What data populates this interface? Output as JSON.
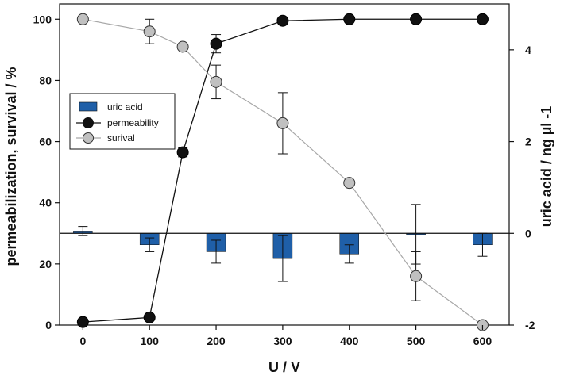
{
  "chart_data": {
    "type": "bar+line",
    "title": "",
    "xlabel": "U / V",
    "ylabel_left": "permeabilization, survival / %",
    "ylabel_right": "uric acid / ng µl -1",
    "xlim": [
      -35,
      640
    ],
    "ylim_left": [
      0,
      105
    ],
    "ylim_right": [
      -2,
      5
    ],
    "x_ticks": [
      "0",
      "100",
      "200",
      "300",
      "400",
      "500",
      "600"
    ],
    "y_left_ticks": [
      "0",
      "20",
      "40",
      "60",
      "80",
      "100"
    ],
    "y_right_ticks": [
      "-2",
      "0",
      "2",
      "4"
    ],
    "legend": {
      "position": "upper-left",
      "entries": [
        "uric acid",
        "permeability",
        "surival"
      ]
    },
    "colors": {
      "uric_acid_bar": "#1f5fa8",
      "permeability_marker": "#111111",
      "survival_marker": "#c0c0c0",
      "survival_line": "#a8a8a8"
    },
    "series": [
      {
        "name": "uric acid",
        "axis": "right",
        "kind": "bar",
        "x": [
          0,
          100,
          200,
          300,
          400,
          500,
          600
        ],
        "values": [
          0.05,
          -0.25,
          -0.4,
          -0.55,
          -0.45,
          -0.02,
          -0.25
        ],
        "errors": [
          0.1,
          0.15,
          0.25,
          0.5,
          0.2,
          0.65,
          0.25
        ]
      },
      {
        "name": "permeability",
        "axis": "left",
        "kind": "line",
        "x": [
          0,
          100,
          150,
          200,
          300,
          400,
          500,
          600
        ],
        "values": [
          1,
          2.5,
          56.5,
          92,
          99.5,
          100,
          100,
          100
        ],
        "errors": [
          0,
          0,
          1.5,
          3,
          0,
          0,
          0,
          0
        ]
      },
      {
        "name": "surival",
        "axis": "left",
        "kind": "line",
        "x": [
          0,
          100,
          150,
          200,
          300,
          400,
          500,
          600
        ],
        "values": [
          100,
          96,
          91,
          79.5,
          66,
          46.5,
          16,
          0
        ],
        "errors": [
          0,
          4,
          0,
          5.5,
          10,
          1,
          8,
          0
        ]
      }
    ]
  }
}
